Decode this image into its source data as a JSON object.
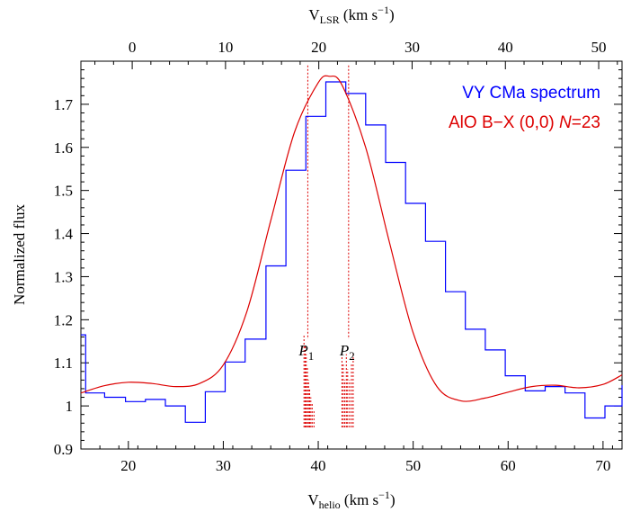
{
  "chart_data": {
    "type": "line",
    "xlabel": "V",
    "xlabel_sub": "helio",
    "xlabel_unit": "(km s",
    "xlabel_unit_sup": "−1",
    "xlabel_unit_end": ")",
    "top_xlabel": "V",
    "top_xlabel_sub": "LSR",
    "top_xlabel_unit": "(km s",
    "top_xlabel_unit_sup": "−1",
    "top_xlabel_unit_end": ")",
    "ylabel": "Normalized flux",
    "xlim": [
      15,
      72
    ],
    "ylim": [
      0.9,
      1.8
    ],
    "top_xlim": [
      -5.5,
      52.5
    ],
    "x_ticks": [
      20,
      30,
      40,
      50,
      60,
      70
    ],
    "top_x_ticks": [
      0,
      10,
      20,
      30,
      40,
      50
    ],
    "y_ticks": [
      0.9,
      1,
      1.1,
      1.2,
      1.3,
      1.4,
      1.5,
      1.6,
      1.7
    ],
    "y_tick_labels": [
      "0.9",
      "1",
      "1.1",
      "1.2",
      "1.3",
      "1.4",
      "1.5",
      "1.6",
      "1.7"
    ],
    "legend_position": "top-right",
    "series": [
      {
        "name": "VY CMa spectrum",
        "color": "#0000ff",
        "style": "step",
        "bin_edges": [
          15,
          15.5,
          17.5,
          19.7,
          21.8,
          23.9,
          26,
          28.1,
          30.2,
          32.3,
          34.5,
          36.6,
          38.7,
          40.8,
          42.9,
          45,
          47.1,
          49.2,
          51.3,
          53.4,
          55.5,
          57.6,
          59.7,
          61.8,
          63.9,
          66,
          68.1,
          70.2,
          72
        ],
        "values": [
          1.165,
          1.03,
          1.02,
          1.01,
          1.015,
          1.0,
          0.962,
          1.033,
          1.102,
          1.155,
          1.325,
          1.547,
          1.672,
          1.752,
          1.725,
          1.652,
          1.565,
          1.47,
          1.382,
          1.265,
          1.178,
          1.13,
          1.07,
          1.035,
          1.045,
          1.03,
          0.972,
          1.0,
          1.048
        ]
      },
      {
        "name": "AlO B−X (0,0) N=23",
        "legend_prefix": "AlO B−X (0,0) ",
        "legend_italic": "N",
        "legend_suffix": "=23",
        "color": "#dd0000",
        "style": "line",
        "x": [
          15,
          17.5,
          20,
          22.5,
          25,
          27.5,
          30,
          32.5,
          35,
          37.5,
          40,
          41.2,
          42.5,
          45,
          47.5,
          50,
          52.5,
          55,
          57.5,
          60,
          62.5,
          65,
          67.5,
          70,
          72
        ],
        "y": [
          1.03,
          1.047,
          1.055,
          1.052,
          1.045,
          1.052,
          1.095,
          1.22,
          1.43,
          1.635,
          1.75,
          1.765,
          1.745,
          1.6,
          1.38,
          1.17,
          1.045,
          1.012,
          1.018,
          1.032,
          1.045,
          1.048,
          1.042,
          1.05,
          1.072
        ]
      }
    ],
    "markers": [
      {
        "label_italic": "P",
        "label_sub": "1",
        "x": 38.9,
        "y_top": 1.79,
        "y_bottom": 1.155
      },
      {
        "label_italic": "P",
        "label_sub": "2",
        "x": 43.2,
        "y_top": 1.79,
        "y_bottom": 1.155
      }
    ],
    "sticks": [
      {
        "x": 38.5,
        "h": 1.165
      },
      {
        "x": 38.62,
        "h": 1.14
      },
      {
        "x": 38.74,
        "h": 1.12
      },
      {
        "x": 38.86,
        "h": 1.09
      },
      {
        "x": 38.98,
        "h": 1.06
      },
      {
        "x": 39.1,
        "h": 1.04
      },
      {
        "x": 39.22,
        "h": 1.02
      },
      {
        "x": 39.36,
        "h": 1.005
      },
      {
        "x": 39.55,
        "h": 0.99
      },
      {
        "x": 42.5,
        "h": 1.12
      },
      {
        "x": 42.64,
        "h": 1.1
      },
      {
        "x": 42.8,
        "h": 1.06
      },
      {
        "x": 42.96,
        "h": 1.12
      },
      {
        "x": 43.1,
        "h": 1.085
      },
      {
        "x": 43.3,
        "h": 1.06
      },
      {
        "x": 43.5,
        "h": 1.1
      },
      {
        "x": 43.68,
        "h": 1.12
      }
    ],
    "stick_base": 0.95,
    "stick_color": "#dd0000"
  }
}
